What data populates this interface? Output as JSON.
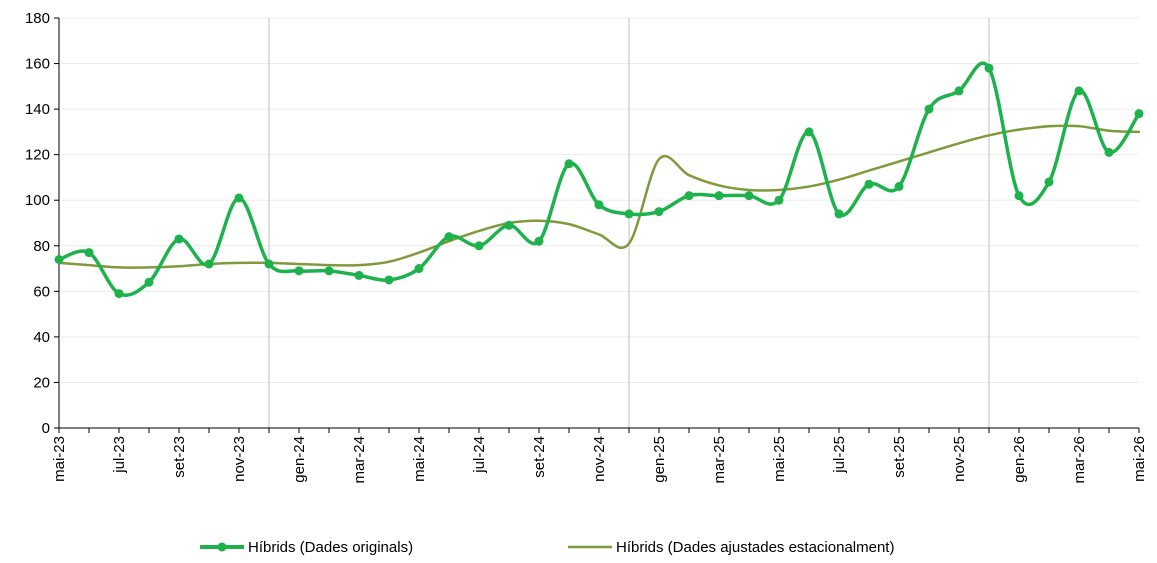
{
  "chart_data": {
    "type": "line",
    "title": "",
    "xlabel": "",
    "ylabel": "",
    "ylim": [
      0,
      180
    ],
    "yticks": [
      0,
      20,
      40,
      60,
      80,
      100,
      120,
      140,
      160,
      180
    ],
    "grid": true,
    "legend_position": "bottom",
    "x": [
      "mai-23",
      "jun-23",
      "jul-23",
      "ago-23",
      "set-23",
      "oct-23",
      "nov-23",
      "des-23",
      "gen-24",
      "feb-24",
      "mar-24",
      "abr-24",
      "mai-24",
      "jun-24",
      "jul-24",
      "ago-24",
      "set-24",
      "oct-24",
      "nov-24",
      "des-24",
      "gen-25",
      "feb-25",
      "mar-25",
      "abr-25",
      "mai-25",
      "jun-25",
      "jul-25",
      "ago-25",
      "set-25",
      "oct-25",
      "nov-25",
      "des-25",
      "gen-26",
      "feb-26",
      "mar-26",
      "abr-26",
      "mai-26"
    ],
    "x_tick_labels": [
      "mai-23",
      "jul-23",
      "set-23",
      "nov-23",
      "gen-24",
      "mar-24",
      "mai-24",
      "jul-24",
      "set-24",
      "nov-24",
      "gen-25",
      "mar-25",
      "mai-25",
      "jul-25",
      "set-25",
      "nov-25",
      "gen-26",
      "mar-26",
      "mai-26"
    ],
    "year_separators_after": [
      "des-23",
      "des-24",
      "des-25"
    ],
    "series": [
      {
        "name": "Híbrids (Dades originals)",
        "color": "#1db24b",
        "markers": true,
        "values": [
          74,
          77,
          59,
          64,
          83,
          72,
          101,
          72,
          69,
          69,
          67,
          65,
          70,
          84,
          80,
          89,
          82,
          116,
          98,
          94,
          95,
          102,
          102,
          102,
          100,
          130,
          94,
          107,
          106,
          140,
          148,
          158,
          102,
          108,
          148,
          121,
          138
        ]
      },
      {
        "name": "Híbrids (Dades ajustades estacionalment)",
        "color": "#7f9a3a",
        "markers": false,
        "values": [
          72.5,
          71.5,
          70.5,
          70.5,
          71,
          72,
          72.5,
          72.5,
          72,
          71.5,
          71.5,
          73,
          77,
          82,
          86.5,
          90,
          91,
          89.5,
          85,
          81,
          118,
          111,
          106.5,
          104.5,
          104.5,
          106,
          109,
          113,
          117,
          121,
          125,
          128.5,
          131,
          132.5,
          132.5,
          130.5,
          130
        ]
      }
    ]
  }
}
